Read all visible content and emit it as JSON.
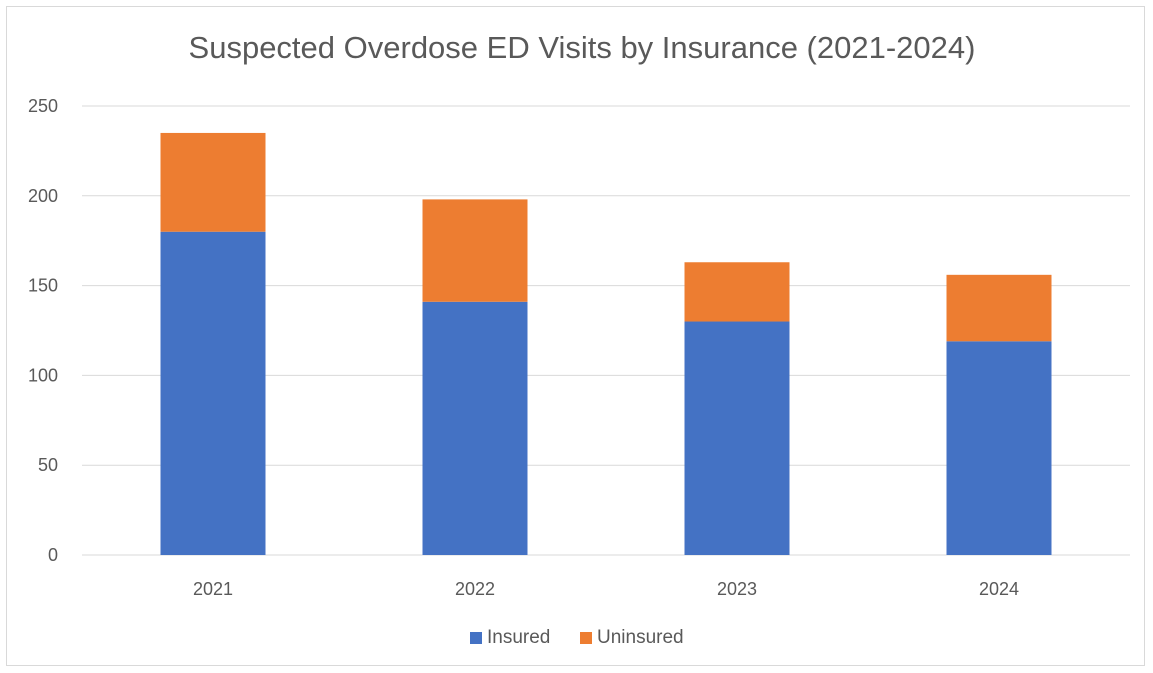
{
  "chart_data": {
    "type": "bar",
    "stacked": true,
    "title": "Suspected Overdose ED Visits by Insurance (2021-2024)",
    "categories": [
      "2021",
      "2022",
      "2023",
      "2024"
    ],
    "series": [
      {
        "name": "Insured",
        "values": [
          180,
          141,
          130,
          119
        ],
        "color": "#4472c4"
      },
      {
        "name": "Uninsured",
        "values": [
          55,
          57,
          33,
          37
        ],
        "color": "#ed7d31"
      }
    ],
    "y_ticks": [
      "0",
      "50",
      "100",
      "150",
      "200",
      "250"
    ],
    "ylim": [
      0,
      250
    ],
    "grid": true,
    "legend_position": "bottom",
    "gridline_color": "#d9d9d9"
  }
}
